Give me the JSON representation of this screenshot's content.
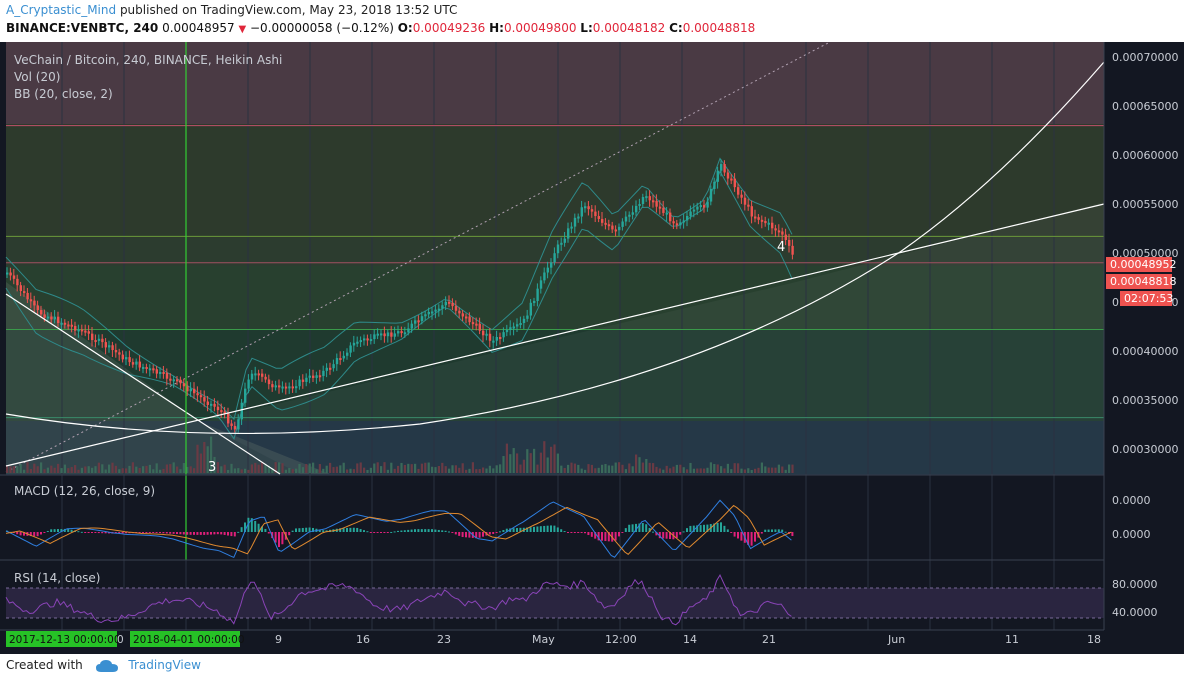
{
  "header": {
    "author": "A_Cryptastic_Mind",
    "published": "published on TradingView.com, May 23, 2018 13:52 UTC",
    "symbol": "BINANCE:VENBTC, 240",
    "last": "0.00048957",
    "change": "−0.00000058 (−0.12%)",
    "o_label": "O:",
    "o": "0.00049236",
    "h_label": "H:",
    "h": "0.00049800",
    "l_label": "L:",
    "l": "0.00048182",
    "c_label": "C:",
    "c": "0.00048818"
  },
  "legend": {
    "title": "VeChain / Bitcoin, 240, BINANCE, Heikin Ashi",
    "vol": "Vol (20)",
    "bb": "BB (20, close, 2)",
    "macd": "MACD (12, 26, close, 9)",
    "rsi": "RSI (14, close)"
  },
  "annotations": {
    "wave3": "3",
    "wave4": "4"
  },
  "price_axis": {
    "ticks": [
      "0.00070000",
      "0.00065000",
      "0.00060000",
      "0.00055000",
      "0.00050000",
      "0.00045000",
      "0.00040000",
      "0.00035000",
      "0.00030000"
    ],
    "badge_last": "0.00048952",
    "badge_close": "0.00048818",
    "badge_timer": "02:07:53"
  },
  "macd_axis": {
    "ticks": [
      "0.0000",
      "0.0000"
    ]
  },
  "rsi_axis": {
    "ticks": [
      "80.0000",
      "40.0000"
    ]
  },
  "time_axis": {
    "labels": [
      "9",
      "16",
      "23",
      "May",
      "12:00",
      "14",
      "21",
      "Jun",
      "11",
      "18"
    ],
    "highlight1": "2017-12-13 00:00:00",
    "highlight_mid": "0",
    "highlight2": "2018-04-01 00:00:00"
  },
  "footer": {
    "created": "Created with",
    "brand": "TradingView"
  },
  "colors": {
    "background": "#131722",
    "up": "#26a69a",
    "down": "#ef5350",
    "accent": "#3a8fd1",
    "vline": "#33cc33",
    "badge": "#ef5350"
  },
  "chart_data": {
    "type": "line",
    "title": "VeChain / Bitcoin, 240, BINANCE, Heikin Ashi",
    "xlabel": "",
    "ylabel": "",
    "ylim": [
      0.00028,
      0.00072
    ],
    "price_series": [
      {
        "date": "2018-04-01",
        "price": 0.00048
      },
      {
        "date": "2018-04-03",
        "price": 0.00044
      },
      {
        "date": "2018-04-06",
        "price": 0.00042
      },
      {
        "date": "2018-04-09",
        "price": 0.00039
      },
      {
        "date": "2018-04-12",
        "price": 0.00037
      },
      {
        "date": "2018-04-15",
        "price": 0.00034
      },
      {
        "date": "2018-04-16",
        "price": 0.00032
      },
      {
        "date": "2018-04-17",
        "price": 0.00038
      },
      {
        "date": "2018-04-19",
        "price": 0.00036
      },
      {
        "date": "2018-04-22",
        "price": 0.00038
      },
      {
        "date": "2018-04-24",
        "price": 0.00041
      },
      {
        "date": "2018-04-27",
        "price": 0.00042
      },
      {
        "date": "2018-04-30",
        "price": 0.00045
      },
      {
        "date": "2018-05-03",
        "price": 0.00041
      },
      {
        "date": "2018-05-05",
        "price": 0.00043
      },
      {
        "date": "2018-05-07",
        "price": 0.0005
      },
      {
        "date": "2018-05-09",
        "price": 0.00055
      },
      {
        "date": "2018-05-11",
        "price": 0.00052
      },
      {
        "date": "2018-05-13",
        "price": 0.00056
      },
      {
        "date": "2018-05-15",
        "price": 0.00053
      },
      {
        "date": "2018-05-17",
        "price": 0.00055
      },
      {
        "date": "2018-05-18",
        "price": 0.00059
      },
      {
        "date": "2018-05-20",
        "price": 0.00054
      },
      {
        "date": "2018-05-22",
        "price": 0.00052
      },
      {
        "date": "2018-05-23",
        "price": 0.000488
      }
    ],
    "horizontal_levels": [
      0.00063,
      0.000517,
      0.00049,
      0.000422,
      0.000332
    ],
    "rsi_levels": [
      70,
      30
    ]
  }
}
